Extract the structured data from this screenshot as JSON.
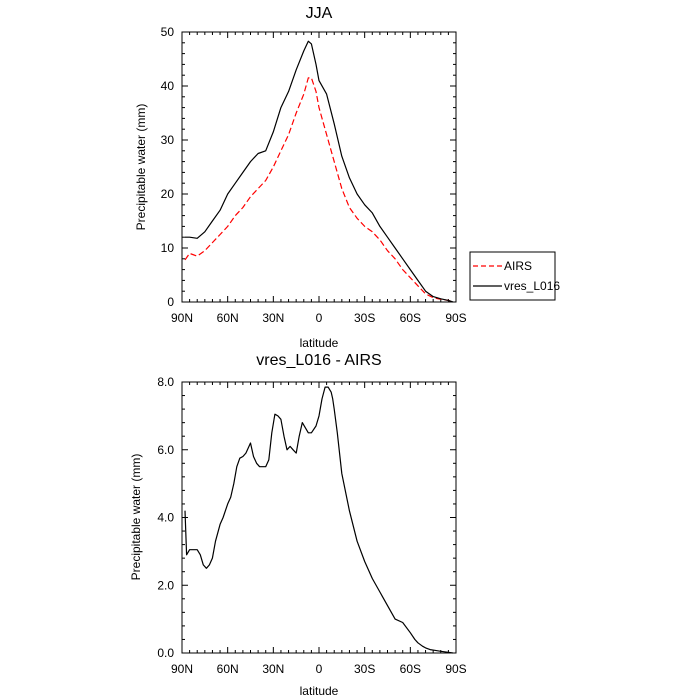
{
  "chart_data": [
    {
      "type": "line",
      "title": "JJA",
      "xlabel": "latitude",
      "ylabel": "Precipitable water (mm)",
      "xlim": [
        90,
        -90
      ],
      "ylim": [
        0,
        50
      ],
      "xticks": [
        90,
        60,
        30,
        0,
        -30,
        -60,
        -90
      ],
      "xtick_labels": [
        "90N",
        "60N",
        "30N",
        "0",
        "30S",
        "60S",
        "90S"
      ],
      "yticks": [
        0,
        10,
        20,
        30,
        40,
        50
      ],
      "ytick_labels": [
        "0",
        "10",
        "20",
        "30",
        "40",
        "50"
      ],
      "legend_position": "right",
      "series": [
        {
          "name": "AIRS",
          "color": "#ff0000",
          "dash": "dashed",
          "x": [
            88,
            85,
            80,
            75,
            70,
            65,
            60,
            55,
            50,
            45,
            40,
            35,
            30,
            25,
            20,
            15,
            10,
            7,
            5,
            2,
            0,
            -5,
            -10,
            -15,
            -20,
            -25,
            -30,
            -35,
            -40,
            -45,
            -50,
            -55,
            -60,
            -65,
            -70,
            -75,
            -80,
            -85,
            -88
          ],
          "y": [
            7.8,
            9,
            8.5,
            9.5,
            11,
            12.5,
            14,
            16,
            17.5,
            19.5,
            21,
            22.5,
            25,
            28,
            31,
            35,
            38.5,
            41.5,
            41.5,
            39,
            36,
            31,
            26,
            21,
            17.5,
            15.5,
            14,
            13,
            11.5,
            9.5,
            8,
            6,
            4.5,
            3,
            1.5,
            0.8,
            0.5,
            0.3,
            0
          ]
        },
        {
          "name": "vres_L016",
          "color": "#000000",
          "dash": "solid",
          "x": [
            88,
            85,
            80,
            75,
            70,
            65,
            60,
            55,
            50,
            45,
            40,
            35,
            30,
            25,
            20,
            15,
            10,
            7,
            5,
            2,
            0,
            -5,
            -10,
            -15,
            -20,
            -25,
            -30,
            -35,
            -40,
            -45,
            -50,
            -55,
            -60,
            -65,
            -70,
            -75,
            -80,
            -85,
            -88
          ],
          "y": [
            12,
            12,
            11.8,
            13,
            15,
            17,
            20,
            22,
            24,
            26,
            27.5,
            28,
            31.5,
            36,
            39,
            43,
            46.5,
            48.3,
            47.8,
            44,
            41,
            38.5,
            33,
            27,
            23,
            20,
            18,
            16.5,
            14,
            12,
            10,
            8,
            6,
            4,
            2,
            1,
            0.6,
            0.3,
            0
          ]
        }
      ]
    },
    {
      "type": "line",
      "title": "vres_L016 - AIRS",
      "xlabel": "latitude",
      "ylabel": "Precipitable water (mm)",
      "xlim": [
        90,
        -90
      ],
      "ylim": [
        0,
        8
      ],
      "xticks": [
        90,
        60,
        30,
        0,
        -30,
        -60,
        -90
      ],
      "xtick_labels": [
        "90N",
        "60N",
        "30N",
        "0",
        "30S",
        "60S",
        "90S"
      ],
      "yticks": [
        0,
        2,
        4,
        6,
        8
      ],
      "ytick_labels": [
        "0.0",
        "2.0",
        "4.0",
        "6.0",
        "8.0"
      ],
      "series": [
        {
          "color": "#000000",
          "dash": "solid",
          "x": [
            88,
            87,
            85,
            82,
            80,
            78,
            76,
            74,
            72,
            70,
            68,
            65,
            63,
            60,
            58,
            56,
            54,
            52,
            50,
            48,
            45,
            43,
            41,
            39,
            37,
            35,
            33,
            31,
            29,
            27,
            25,
            23,
            21,
            19,
            17,
            15,
            13,
            11,
            9,
            7,
            5,
            2,
            0,
            -2,
            -4,
            -6,
            -8,
            -9,
            -10,
            -12,
            -15,
            -20,
            -25,
            -30,
            -35,
            -40,
            -45,
            -50,
            -55,
            -60,
            -63,
            -65,
            -68,
            -70,
            -73,
            -76,
            -80,
            -85,
            -88
          ],
          "y": [
            4.2,
            2.9,
            3.05,
            3.05,
            3.05,
            2.9,
            2.6,
            2.5,
            2.6,
            2.8,
            3.3,
            3.8,
            4.0,
            4.4,
            4.6,
            5.0,
            5.5,
            5.75,
            5.8,
            5.9,
            6.2,
            5.8,
            5.6,
            5.5,
            5.5,
            5.5,
            5.7,
            6.5,
            7.05,
            7.0,
            6.9,
            6.4,
            6.0,
            6.1,
            6.0,
            5.9,
            6.4,
            6.8,
            6.65,
            6.5,
            6.5,
            6.7,
            7.0,
            7.5,
            7.85,
            7.85,
            7.7,
            7.5,
            7.2,
            6.5,
            5.3,
            4.2,
            3.3,
            2.7,
            2.2,
            1.8,
            1.4,
            1.0,
            0.9,
            0.6,
            0.4,
            0.3,
            0.2,
            0.15,
            0.1,
            0.08,
            0.05,
            0.02,
            0
          ]
        }
      ]
    }
  ]
}
